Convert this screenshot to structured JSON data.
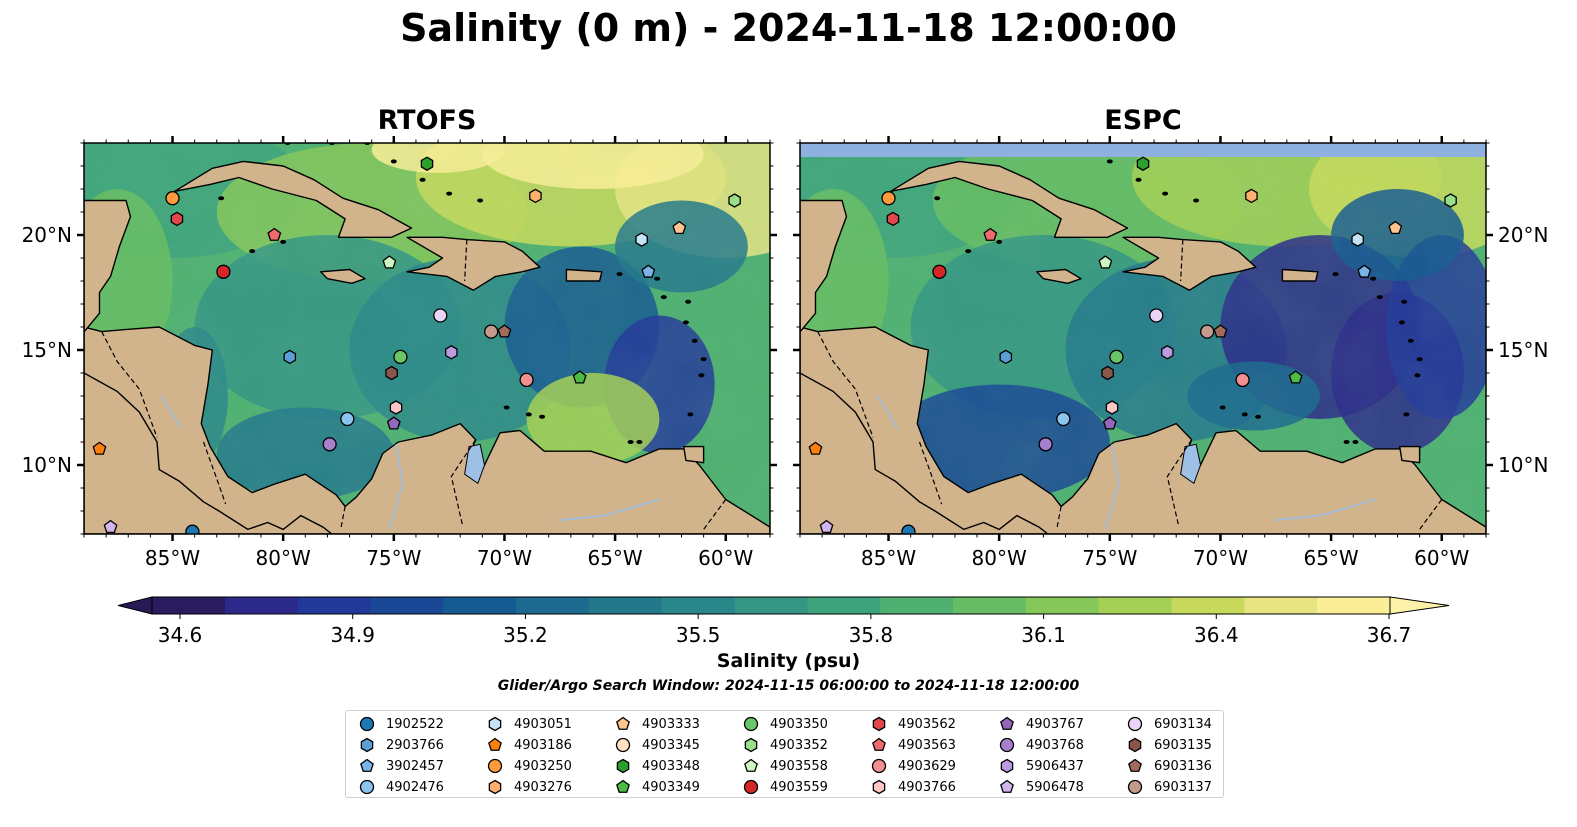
{
  "title": "Salinity (0 m) - 2024-11-18 12:00:00",
  "panels": [
    {
      "title": "RTOFS"
    },
    {
      "title": "ESPC"
    }
  ],
  "map": {
    "lon_range": [
      -89,
      -58
    ],
    "lat_range": [
      7,
      24
    ],
    "x_ticks": [
      "85°W",
      "80°W",
      "75°W",
      "70°W",
      "65°W",
      "60°W"
    ],
    "y_ticks": [
      "20°N",
      "15°N",
      "10°N"
    ]
  },
  "colorbar": {
    "label": "Salinity (psu)",
    "min": 34.6,
    "max": 36.7,
    "ticks": [
      "34.6",
      "34.9",
      "35.2",
      "35.5",
      "35.8",
      "36.1",
      "36.4",
      "36.7"
    ],
    "extend": "both",
    "colormap": "haline",
    "colors": [
      "#2a1a5e",
      "#2b2a8a",
      "#23399a",
      "#1a4896",
      "#165a92",
      "#1c6a8f",
      "#23788c",
      "#2a8789",
      "#339584",
      "#3da37c",
      "#4fb071",
      "#67bd63",
      "#86c75a",
      "#a6d055",
      "#c8da5c",
      "#e8e483",
      "#fbee97"
    ]
  },
  "search_window": "Glider/Argo Search Window: 2024-11-15 06:00:00 to 2024-11-18 12:00:00",
  "land_color": "#d2b48c",
  "nodata_color": "#8fb1e0",
  "lake_color": "#9ebfe6",
  "floats": [
    {
      "id": "1902522",
      "marker": "circle",
      "color": "#1f77b4"
    },
    {
      "id": "2903766",
      "marker": "hexagon",
      "color": "#5c9ed6"
    },
    {
      "id": "3902457",
      "marker": "pentagon",
      "color": "#7ab4e8"
    },
    {
      "id": "4902476",
      "marker": "circle",
      "color": "#8cc4f0"
    },
    {
      "id": "4903051",
      "marker": "hexagon",
      "color": "#c6e2f7"
    },
    {
      "id": "4903186",
      "marker": "pentagon",
      "color": "#ff7f0e"
    },
    {
      "id": "4903250",
      "marker": "circle",
      "color": "#ff9a3d"
    },
    {
      "id": "4903276",
      "marker": "hexagon",
      "color": "#ffb070"
    },
    {
      "id": "4903333",
      "marker": "pentagon",
      "color": "#ffc48f"
    },
    {
      "id": "4903345",
      "marker": "circle",
      "color": "#ffe0bf"
    },
    {
      "id": "4903348",
      "marker": "hexagon",
      "color": "#2ca02c"
    },
    {
      "id": "4903349",
      "marker": "pentagon",
      "color": "#4cbc44"
    },
    {
      "id": "4903350",
      "marker": "circle",
      "color": "#6ac768"
    },
    {
      "id": "4903352",
      "marker": "hexagon",
      "color": "#98df8a"
    },
    {
      "id": "4903558",
      "marker": "pentagon",
      "color": "#cff5c4"
    },
    {
      "id": "4903559",
      "marker": "circle",
      "color": "#d62728"
    },
    {
      "id": "4903562",
      "marker": "hexagon",
      "color": "#e0474a"
    },
    {
      "id": "4903563",
      "marker": "pentagon",
      "color": "#ee6a6c"
    },
    {
      "id": "4903629",
      "marker": "circle",
      "color": "#f28f90"
    },
    {
      "id": "4903766",
      "marker": "hexagon",
      "color": "#ffc6c6"
    },
    {
      "id": "4903767",
      "marker": "pentagon",
      "color": "#9467bd"
    },
    {
      "id": "4903768",
      "marker": "circle",
      "color": "#a77fcc"
    },
    {
      "id": "5906437",
      "marker": "hexagon",
      "color": "#bb9add"
    },
    {
      "id": "5906478",
      "marker": "pentagon",
      "color": "#d0b6ec"
    },
    {
      "id": "6903134",
      "marker": "circle",
      "color": "#ecd4f7"
    },
    {
      "id": "6903135",
      "marker": "hexagon",
      "color": "#8c564b"
    },
    {
      "id": "6903136",
      "marker": "pentagon",
      "color": "#a36b5e"
    },
    {
      "id": "6903137",
      "marker": "circle",
      "color": "#c49a8c"
    }
  ],
  "positions": [
    {
      "id": "4903250",
      "lon": -85.0,
      "lat": 21.6
    },
    {
      "id": "4903562",
      "lon": -84.8,
      "lat": 20.7
    },
    {
      "id": "4903563",
      "lon": -80.4,
      "lat": 20.0
    },
    {
      "id": "4903559",
      "lon": -82.7,
      "lat": 18.4
    },
    {
      "id": "4903348",
      "lon": -73.5,
      "lat": 23.1
    },
    {
      "id": "4903276",
      "lon": -68.6,
      "lat": 21.7
    },
    {
      "id": "4903333",
      "lon": -62.1,
      "lat": 20.3
    },
    {
      "id": "4903352",
      "lon": -59.6,
      "lat": 21.5
    },
    {
      "id": "4903051",
      "lon": -63.8,
      "lat": 19.8
    },
    {
      "id": "4903558",
      "lon": -75.2,
      "lat": 18.8
    },
    {
      "id": "3902457",
      "lon": -63.5,
      "lat": 18.4
    },
    {
      "id": "6903134",
      "lon": -72.9,
      "lat": 16.5
    },
    {
      "id": "6903137",
      "lon": -70.6,
      "lat": 15.8
    },
    {
      "id": "6903136",
      "lon": -70.0,
      "lat": 15.8
    },
    {
      "id": "2903766",
      "lon": -79.7,
      "lat": 14.7
    },
    {
      "id": "4903350",
      "lon": -74.7,
      "lat": 14.7
    },
    {
      "id": "5906437",
      "lon": -72.4,
      "lat": 14.9
    },
    {
      "id": "6903135",
      "lon": -75.1,
      "lat": 14.0
    },
    {
      "id": "4903349",
      "lon": -66.6,
      "lat": 13.8
    },
    {
      "id": "4903629",
      "lon": -69.0,
      "lat": 13.7
    },
    {
      "id": "4903766",
      "lon": -74.9,
      "lat": 12.5
    },
    {
      "id": "4902476",
      "lon": -77.1,
      "lat": 12.0
    },
    {
      "id": "4903767",
      "lon": -75.0,
      "lat": 11.8
    },
    {
      "id": "4903768",
      "lon": -77.9,
      "lat": 10.9
    },
    {
      "id": "4903186",
      "lon": -88.3,
      "lat": 10.7
    },
    {
      "id": "5906478",
      "lon": -87.8,
      "lat": 7.3
    },
    {
      "id": "1902522",
      "lon": -84.1,
      "lat": 7.1
    }
  ]
}
